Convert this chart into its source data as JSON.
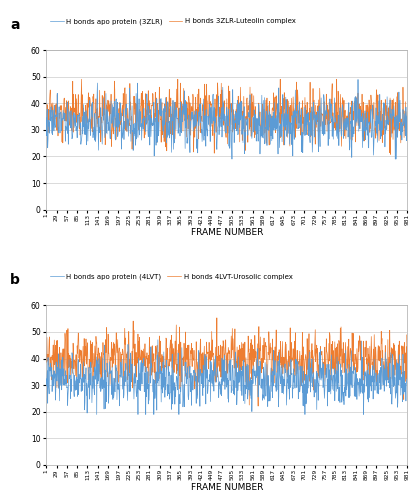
{
  "panel_a": {
    "label": "a",
    "legend1": "H bonds apo protein (3ZLR)",
    "legend2": "H bonds 3ZLR-Luteolin complex",
    "xlabel": "FRAME NUMBER",
    "color1": "#5b9bd5",
    "color2": "#ed7d31",
    "ylim": [
      0,
      60
    ],
    "yticks": [
      0,
      10,
      20,
      30,
      40,
      50,
      60
    ],
    "mean1": 33,
    "std1": 5,
    "mean2": 36,
    "std2": 5
  },
  "panel_b": {
    "label": "b",
    "legend1": "H bonds apo protein (4LVT)",
    "legend2": "H bonds 4LVT-Urosolic complex",
    "xlabel": "FRAME NUMBER",
    "color1": "#5b9bd5",
    "color2": "#ed7d31",
    "ylim": [
      0,
      60
    ],
    "yticks": [
      0,
      10,
      20,
      30,
      40,
      50,
      60
    ],
    "mean1": 32,
    "std1": 5,
    "mean2": 40,
    "std2": 5
  },
  "xtick_labels": [
    "1",
    "29",
    "57",
    "85",
    "113",
    "141",
    "169",
    "197",
    "225",
    "253",
    "281",
    "309",
    "337",
    "365",
    "393",
    "421",
    "449",
    "477",
    "505",
    "533",
    "561",
    "589",
    "617",
    "645",
    "673",
    "701",
    "729",
    "757",
    "785",
    "813",
    "841",
    "869",
    "897",
    "925",
    "953",
    "981"
  ],
  "n_frames": 981
}
